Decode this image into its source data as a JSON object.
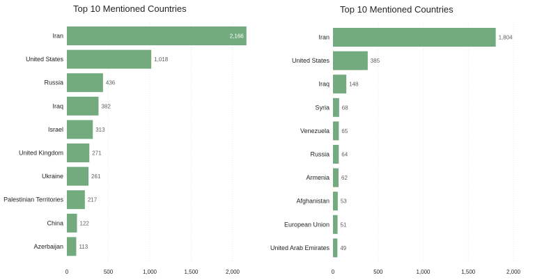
{
  "chart_data": [
    {
      "type": "bar",
      "orientation": "horizontal",
      "title": "Top 10 Mentioned Countries",
      "categories": [
        "Iran",
        "United States",
        "Russia",
        "Iraq",
        "Israel",
        "United Kingdom",
        "Ukraine",
        "Palestinian Territories",
        "China",
        "Azerbaijan"
      ],
      "values": [
        2166,
        1018,
        436,
        382,
        313,
        271,
        261,
        217,
        122,
        113
      ],
      "value_labels": [
        "2,166",
        "1,018",
        "436",
        "382",
        "313",
        "271",
        "261",
        "217",
        "122",
        "113"
      ],
      "xlim": [
        0,
        2200
      ],
      "xticks": [
        0,
        500,
        1000,
        1500,
        2000
      ],
      "xtick_labels": [
        "0",
        "500",
        "1,000",
        "1,500",
        "2,000"
      ],
      "grid": true,
      "color": "#73ab7f"
    },
    {
      "type": "bar",
      "orientation": "horizontal",
      "title": "Top 10 Mentioned Countries",
      "categories": [
        "Iran",
        "United States",
        "Iraq",
        "Syria",
        "Venezuela",
        "Russia",
        "Armenia",
        "Afghanistan",
        "European Union",
        "United Arab Emirates"
      ],
      "values": [
        1804,
        385,
        148,
        68,
        65,
        64,
        62,
        53,
        51,
        49
      ],
      "value_labels": [
        "1,804",
        "385",
        "148",
        "68",
        "65",
        "64",
        "62",
        "53",
        "51",
        "49"
      ],
      "xlim": [
        0,
        2050
      ],
      "xticks": [
        0,
        500,
        1000,
        1500,
        2000
      ],
      "xtick_labels": [
        "0",
        "500",
        "1,000",
        "1,500",
        "2,000"
      ],
      "grid": true,
      "color": "#73ab7f"
    }
  ]
}
